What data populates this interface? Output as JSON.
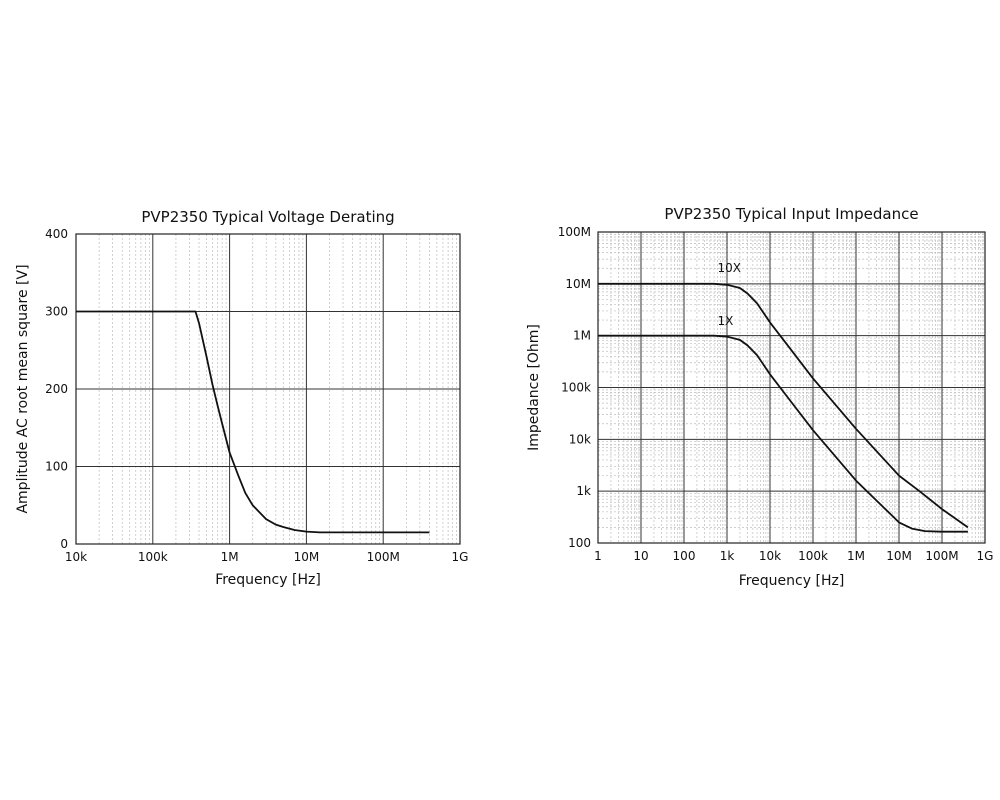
{
  "chart_data": [
    {
      "type": "line",
      "title": "PVP2350 Typical Voltage Derating",
      "xlabel": "Frequency [Hz]",
      "ylabel": "Amplitude AC root mean square [V]",
      "x_scale": "log",
      "xlim": [
        10000,
        1000000000
      ],
      "ylim": [
        0,
        400
      ],
      "grid": true,
      "x_ticks": [
        {
          "value": 10000,
          "label": "10k"
        },
        {
          "value": 100000,
          "label": "100k"
        },
        {
          "value": 1000000,
          "label": "1M"
        },
        {
          "value": 10000000,
          "label": "10M"
        },
        {
          "value": 100000000,
          "label": "100M"
        },
        {
          "value": 1000000000,
          "label": "1G"
        }
      ],
      "y_ticks": [
        {
          "value": 0,
          "label": "0"
        },
        {
          "value": 100,
          "label": "100"
        },
        {
          "value": 200,
          "label": "200"
        },
        {
          "value": 300,
          "label": "300"
        },
        {
          "value": 400,
          "label": "400"
        }
      ],
      "series": [
        {
          "x": [
            10000,
            100000,
            360000,
            400000,
            500000,
            600000,
            700000,
            800000,
            1000000,
            1300000,
            1600000,
            2000000,
            3000000,
            4000000,
            5000000,
            7000000,
            10000000,
            15000000,
            50000000,
            100000000,
            400000000
          ],
          "y": [
            300,
            300,
            300,
            285,
            242,
            205,
            178,
            155,
            118,
            88,
            66,
            50,
            32,
            25,
            22,
            18,
            16,
            15,
            15,
            15,
            15
          ]
        }
      ]
    },
    {
      "type": "line",
      "title": "PVP2350 Typical Input Impedance",
      "xlabel": "Frequency [Hz]",
      "ylabel": "Impedance [Ohm]",
      "x_scale": "log",
      "y_scale": "log",
      "xlim": [
        1,
        1000000000
      ],
      "ylim": [
        100,
        100000000
      ],
      "grid": true,
      "x_ticks": [
        {
          "value": 1,
          "label": "1"
        },
        {
          "value": 10,
          "label": "10"
        },
        {
          "value": 100,
          "label": "100"
        },
        {
          "value": 1000,
          "label": "1k"
        },
        {
          "value": 10000,
          "label": "10k"
        },
        {
          "value": 100000,
          "label": "100k"
        },
        {
          "value": 1000000,
          "label": "1M"
        },
        {
          "value": 10000000,
          "label": "10M"
        },
        {
          "value": 100000000,
          "label": "100M"
        },
        {
          "value": 1000000000,
          "label": "1G"
        }
      ],
      "y_ticks": [
        {
          "value": 100,
          "label": "100"
        },
        {
          "value": 1000,
          "label": "1k"
        },
        {
          "value": 10000,
          "label": "10k"
        },
        {
          "value": 100000,
          "label": "100k"
        },
        {
          "value": 1000000,
          "label": "1M"
        },
        {
          "value": 10000000,
          "label": "10M"
        },
        {
          "value": 100000000,
          "label": "100M"
        }
      ],
      "series": [
        {
          "name": "10X",
          "x": [
            1,
            100,
            500,
            1000,
            2000,
            3000,
            5000,
            10000,
            30000,
            100000,
            1000000,
            10000000,
            30000000,
            100000000,
            400000000
          ],
          "y": [
            10000000,
            10000000,
            10000000,
            9600000,
            8300000,
            6500000,
            4200000,
            1800000,
            550000,
            150000,
            16000,
            2000,
            1000,
            450,
            200
          ]
        },
        {
          "name": "1X",
          "x": [
            1,
            100,
            500,
            1000,
            2000,
            3000,
            5000,
            10000,
            30000,
            100000,
            1000000,
            10000000,
            20000000,
            40000000,
            100000000,
            400000000
          ],
          "y": [
            1000000,
            1000000,
            1000000,
            960000,
            830000,
            650000,
            420000,
            180000,
            55000,
            15000,
            1600,
            250,
            190,
            170,
            165,
            165
          ]
        }
      ]
    }
  ]
}
